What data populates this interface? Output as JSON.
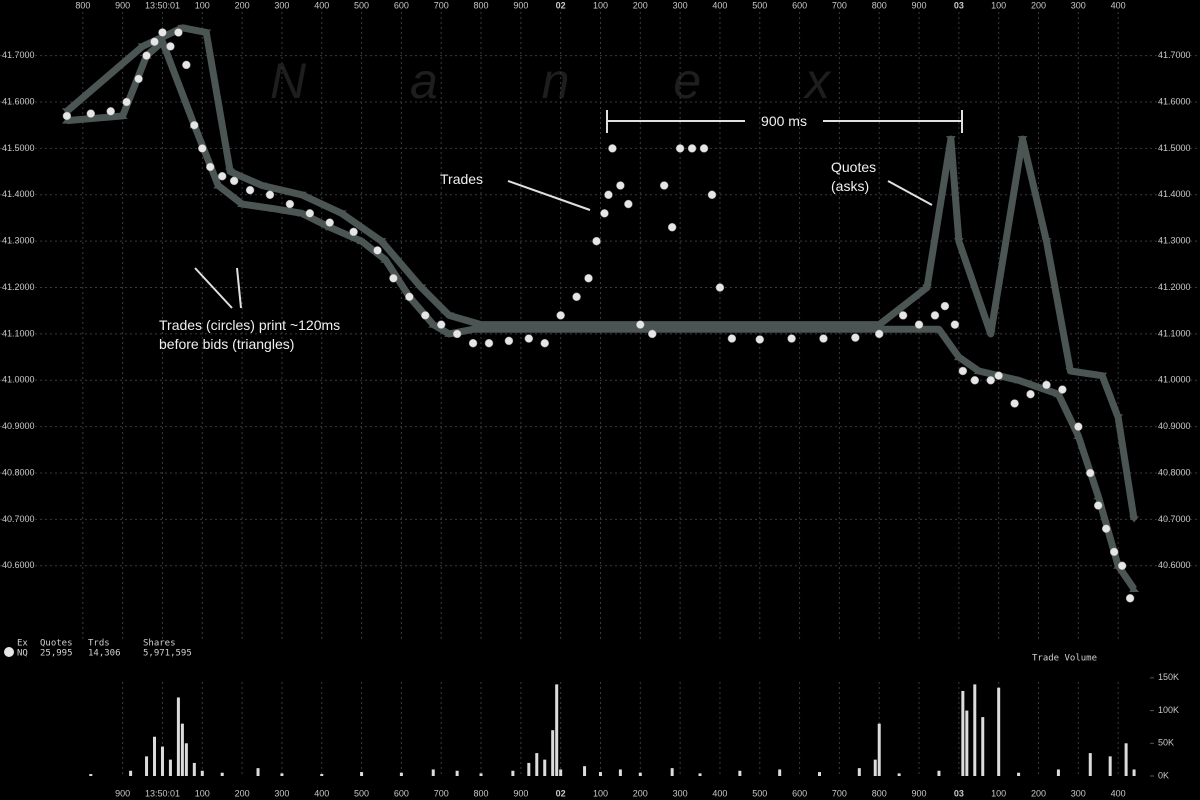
{
  "chart_data": [
    {
      "type": "scatter",
      "watermark": "N a n e x",
      "xlim": [
        705,
        3480
      ],
      "xticks": [
        800,
        900,
        {
          "value": 1000,
          "label": "13:50:01"
        },
        {
          "value": 1100,
          "label": "100"
        },
        {
          "value": 1200,
          "label": "200"
        },
        {
          "value": 1300,
          "label": "300"
        },
        {
          "value": 1400,
          "label": "400"
        },
        {
          "value": 1500,
          "label": "500"
        },
        {
          "value": 1600,
          "label": "600"
        },
        {
          "value": 1700,
          "label": "700"
        },
        {
          "value": 1800,
          "label": "800"
        },
        {
          "value": 1900,
          "label": "900"
        },
        {
          "value": 2000,
          "label": "02"
        },
        {
          "value": 2100,
          "label": "100"
        },
        {
          "value": 2200,
          "label": "200"
        },
        {
          "value": 2300,
          "label": "300"
        },
        {
          "value": 2400,
          "label": "400"
        },
        {
          "value": 2500,
          "label": "500"
        },
        {
          "value": 2600,
          "label": "600"
        },
        {
          "value": 2700,
          "label": "700"
        },
        {
          "value": 2800,
          "label": "800"
        },
        {
          "value": 2900,
          "label": "900"
        },
        {
          "value": 3000,
          "label": "03"
        },
        {
          "value": 3100,
          "label": "100"
        },
        {
          "value": 3200,
          "label": "200"
        },
        {
          "value": 3300,
          "label": "300"
        },
        {
          "value": 3400,
          "label": "400"
        }
      ],
      "ylim": [
        40.44,
        41.82
      ],
      "yticks": [
        {
          "value": 40.6,
          "label": "40.6000"
        },
        {
          "value": 40.7,
          "label": "40.7000"
        },
        {
          "value": 40.8,
          "label": "40.8000"
        },
        {
          "value": 40.9,
          "label": "40.9000"
        },
        {
          "value": 41.0,
          "label": "41.0000"
        },
        {
          "value": 41.1,
          "label": "41.1000"
        },
        {
          "value": 41.2,
          "label": "41.2000"
        },
        {
          "value": 41.3,
          "label": "41.3000"
        },
        {
          "value": 41.4,
          "label": "41.4000"
        },
        {
          "value": 41.5,
          "label": "41.5000"
        },
        {
          "value": 41.6,
          "label": "41.6000"
        },
        {
          "value": 41.7,
          "label": "41.7000"
        }
      ],
      "grid": true,
      "series": [
        {
          "marker": "triangle-up",
          "color": "#4b5553",
          "x": [
            760,
            900,
            960,
            1000,
            1080,
            1140,
            1200,
            1280,
            1350,
            1420,
            1500,
            1560,
            1620,
            1680,
            1720,
            1780,
            1900,
            2100,
            2400,
            2700,
            2850,
            2950,
            3000,
            3050,
            3150,
            3250,
            3300,
            3350,
            3400,
            3440
          ],
          "values": [
            41.56,
            41.57,
            41.7,
            41.73,
            41.55,
            41.42,
            41.38,
            41.37,
            41.36,
            41.33,
            41.3,
            41.26,
            41.18,
            41.12,
            41.1,
            41.11,
            41.11,
            41.11,
            41.11,
            41.11,
            41.11,
            41.11,
            41.05,
            41.02,
            41.0,
            40.97,
            40.88,
            40.75,
            40.6,
            40.55
          ]
        },
        {
          "marker": "triangle-down",
          "color": "#4b5553",
          "x": [
            760,
            950,
            1050,
            1110,
            1170,
            1250,
            1350,
            1450,
            1550,
            1650,
            1720,
            1800,
            2800,
            2920,
            2980,
            3000,
            3080,
            3160,
            3220,
            3280,
            3360,
            3400,
            3440
          ],
          "values": [
            41.58,
            41.72,
            41.76,
            41.75,
            41.45,
            41.42,
            41.4,
            41.36,
            41.3,
            41.2,
            41.14,
            41.12,
            41.12,
            41.2,
            41.52,
            41.3,
            41.1,
            41.52,
            41.3,
            41.02,
            41.01,
            40.92,
            40.7
          ]
        },
        {
          "marker": "circle",
          "color": "#e6e6e6",
          "x": [
            760,
            820,
            870,
            910,
            940,
            960,
            980,
            1000,
            1020,
            1040,
            1060,
            1080,
            1100,
            1120,
            1150,
            1180,
            1220,
            1270,
            1320,
            1370,
            1420,
            1480,
            1540,
            1580,
            1620,
            1660,
            1700,
            1740,
            1780,
            1820,
            1870,
            1920,
            1960,
            2000,
            2040,
            2070,
            2090,
            2110,
            2120,
            2130,
            2150,
            2170,
            2200,
            2230,
            2260,
            2280,
            2300,
            2330,
            2360,
            2380,
            2400,
            2430,
            2500,
            2580,
            2660,
            2740,
            2800,
            2860,
            2900,
            2940,
            2965,
            2990,
            3010,
            3040,
            3080,
            3100,
            3140,
            3180,
            3220,
            3260,
            3300,
            3330,
            3350,
            3370,
            3390,
            3410,
            3430
          ],
          "values": [
            41.57,
            41.575,
            41.58,
            41.6,
            41.65,
            41.7,
            41.73,
            41.75,
            41.72,
            41.75,
            41.68,
            41.55,
            41.5,
            41.46,
            41.44,
            41.43,
            41.41,
            41.4,
            41.38,
            41.36,
            41.34,
            41.32,
            41.28,
            41.22,
            41.18,
            41.14,
            41.12,
            41.1,
            41.08,
            41.08,
            41.085,
            41.09,
            41.08,
            41.14,
            41.18,
            41.22,
            41.3,
            41.36,
            41.4,
            41.5,
            41.42,
            41.38,
            41.12,
            41.1,
            41.42,
            41.33,
            41.5,
            41.5,
            41.5,
            41.4,
            41.2,
            41.09,
            41.088,
            41.09,
            41.09,
            41.092,
            41.1,
            41.14,
            41.12,
            41.14,
            41.16,
            41.12,
            41.02,
            41.0,
            41.0,
            41.01,
            40.95,
            40.97,
            40.99,
            40.98,
            40.9,
            40.8,
            40.73,
            40.68,
            40.63,
            40.6,
            40.53
          ]
        }
      ],
      "annotations": [
        "900 ms",
        "Trades",
        "Quotes",
        "(asks)",
        "Trades (circles) print ~120ms",
        "before bids (triangles)"
      ],
      "stats": {
        "headers": [
          "Ex",
          "Quotes",
          "Trds",
          "Shares"
        ],
        "row": [
          "NQ",
          "25,995",
          "14,306",
          "5,971,595"
        ]
      }
    },
    {
      "type": "bar",
      "title": "Trade Volume",
      "color": "#dcdcdc",
      "xlim": [
        705,
        3480
      ],
      "xticks": [
        900,
        {
          "value": 1000,
          "label": "13:50:01"
        },
        {
          "value": 1100,
          "label": "100"
        },
        {
          "value": 1200,
          "label": "200"
        },
        {
          "value": 1300,
          "label": "300"
        },
        {
          "value": 1400,
          "label": "400"
        },
        {
          "value": 1500,
          "label": "500"
        },
        {
          "value": 1600,
          "label": "600"
        },
        {
          "value": 1700,
          "label": "700"
        },
        {
          "value": 1800,
          "label": "800"
        },
        {
          "value": 1900,
          "label": "900"
        },
        {
          "value": 2000,
          "label": "02"
        },
        {
          "value": 2100,
          "label": "100"
        },
        {
          "value": 2200,
          "label": "200"
        },
        {
          "value": 2300,
          "label": "300"
        },
        {
          "value": 2400,
          "label": "400"
        },
        {
          "value": 2500,
          "label": "500"
        },
        {
          "value": 2600,
          "label": "600"
        },
        {
          "value": 2700,
          "label": "700"
        },
        {
          "value": 2800,
          "label": "800"
        },
        {
          "value": 2900,
          "label": "900"
        },
        {
          "value": 3000,
          "label": "03"
        },
        {
          "value": 3100,
          "label": "100"
        },
        {
          "value": 3200,
          "label": "200"
        },
        {
          "value": 3300,
          "label": "300"
        },
        {
          "value": 3400,
          "label": "400"
        }
      ],
      "ylim": [
        0,
        162000
      ],
      "yticks": [
        {
          "value": 0,
          "label": "0K"
        },
        {
          "value": 50000,
          "label": "50K"
        },
        {
          "value": 100000,
          "label": "100K"
        },
        {
          "value": 150000,
          "label": "150K"
        }
      ],
      "x": [
        820,
        920,
        960,
        980,
        1000,
        1020,
        1040,
        1050,
        1060,
        1080,
        1100,
        1150,
        1240,
        1300,
        1400,
        1500,
        1600,
        1680,
        1740,
        1800,
        1880,
        1920,
        1940,
        1960,
        1980,
        1990,
        2000,
        2060,
        2100,
        2150,
        2200,
        2280,
        2350,
        2450,
        2550,
        2650,
        2750,
        2790,
        2800,
        2850,
        2950,
        3010,
        3020,
        3040,
        3060,
        3100,
        3150,
        3250,
        3330,
        3380,
        3420,
        3440
      ],
      "values": [
        3000,
        8000,
        30000,
        60000,
        45000,
        25000,
        120000,
        80000,
        50000,
        20000,
        8000,
        5000,
        12000,
        4000,
        3000,
        6000,
        5000,
        10000,
        8000,
        4000,
        8000,
        20000,
        35000,
        25000,
        70000,
        140000,
        10000,
        15000,
        6000,
        10000,
        5000,
        12000,
        4000,
        8000,
        10000,
        6000,
        12000,
        25000,
        80000,
        4000,
        8000,
        130000,
        100000,
        140000,
        90000,
        135000,
        5000,
        10000,
        35000,
        30000,
        50000,
        10000
      ]
    }
  ]
}
